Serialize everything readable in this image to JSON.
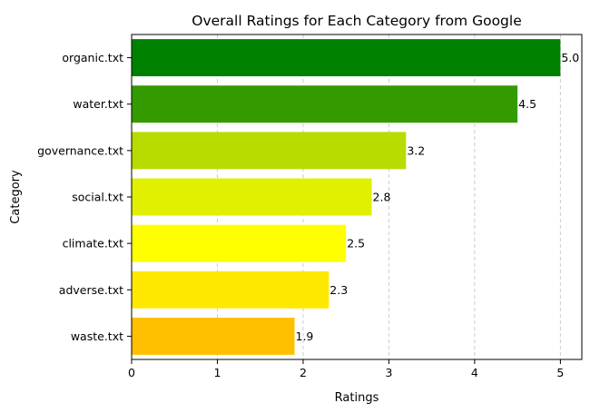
{
  "chart_data": {
    "type": "bar",
    "orientation": "horizontal",
    "title": "Overall Ratings for Each Category from Google",
    "xlabel": "Ratings",
    "ylabel": "Category",
    "xlim": [
      0,
      5.25
    ],
    "xticks": [
      0,
      1,
      2,
      3,
      4,
      5
    ],
    "grid": "x-dashed",
    "categories": [
      "organic.txt",
      "water.txt",
      "governance.txt",
      "social.txt",
      "climate.txt",
      "adverse.txt",
      "waste.txt"
    ],
    "values": [
      5.0,
      4.5,
      3.2,
      2.8,
      2.5,
      2.3,
      1.9
    ],
    "value_labels": [
      "5.0",
      "4.5",
      "3.2",
      "2.8",
      "2.5",
      "2.3",
      "1.9"
    ],
    "colors": [
      "#008000",
      "#339b00",
      "#b8dc00",
      "#e0f000",
      "#ffff00",
      "#ffe800",
      "#ffc000"
    ]
  }
}
